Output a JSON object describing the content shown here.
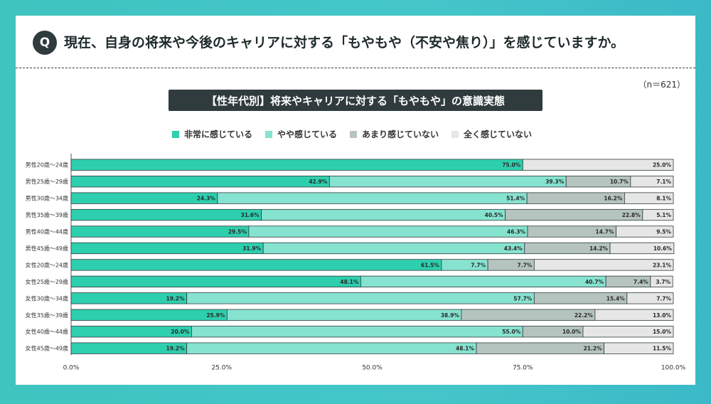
{
  "question": {
    "badge": "Q",
    "text": "現在、自身の将来や今後のキャリアに対する「もやもや（不安や焦り）」を感じていますか。"
  },
  "sample_note": "（n＝621）",
  "colors": {
    "series": [
      "#2ecfae",
      "#86e3cf",
      "#b6c4bf",
      "#e6e6e6"
    ],
    "bar_stroke": "#2f3b3c"
  },
  "chart_data": {
    "type": "bar",
    "orientation": "horizontal",
    "stacked": true,
    "title": "【性年代別】将来やキャリアに対する「もやもや」の意識実態",
    "legend_position": "top",
    "categories": [
      "男性20歳〜24歳",
      "男性25歳〜29歳",
      "男性30歳〜34歳",
      "男性35歳〜39歳",
      "男性40歳〜44歳",
      "男性45歳〜49歳",
      "女性20歳〜24歳",
      "女性25歳〜29歳",
      "女性30歳〜34歳",
      "女性35歳〜39歳",
      "女性40歳〜44歳",
      "女性45歳〜49歳"
    ],
    "series": [
      {
        "name": "非常に感じている",
        "values": [
          75.0,
          42.9,
          24.3,
          31.6,
          29.5,
          31.9,
          61.5,
          48.1,
          19.2,
          25.9,
          20.0,
          19.2
        ]
      },
      {
        "name": "やや感じている",
        "values": [
          0,
          39.3,
          51.4,
          40.5,
          46.3,
          43.4,
          7.7,
          40.7,
          57.7,
          38.9,
          55.0,
          48.1
        ]
      },
      {
        "name": "あまり感じていない",
        "values": [
          0,
          10.7,
          16.2,
          22.8,
          14.7,
          14.2,
          7.7,
          7.4,
          15.4,
          22.2,
          10.0,
          21.2
        ]
      },
      {
        "name": "全く感じていない",
        "values": [
          25.0,
          7.1,
          8.1,
          5.1,
          9.5,
          10.6,
          23.1,
          3.7,
          7.7,
          13.0,
          15.0,
          11.5
        ]
      }
    ],
    "xlim": [
      0,
      100
    ],
    "xticks": [
      "0.0%",
      "25.0%",
      "50.0%",
      "75.0%",
      "100.0%"
    ],
    "grid": false
  }
}
